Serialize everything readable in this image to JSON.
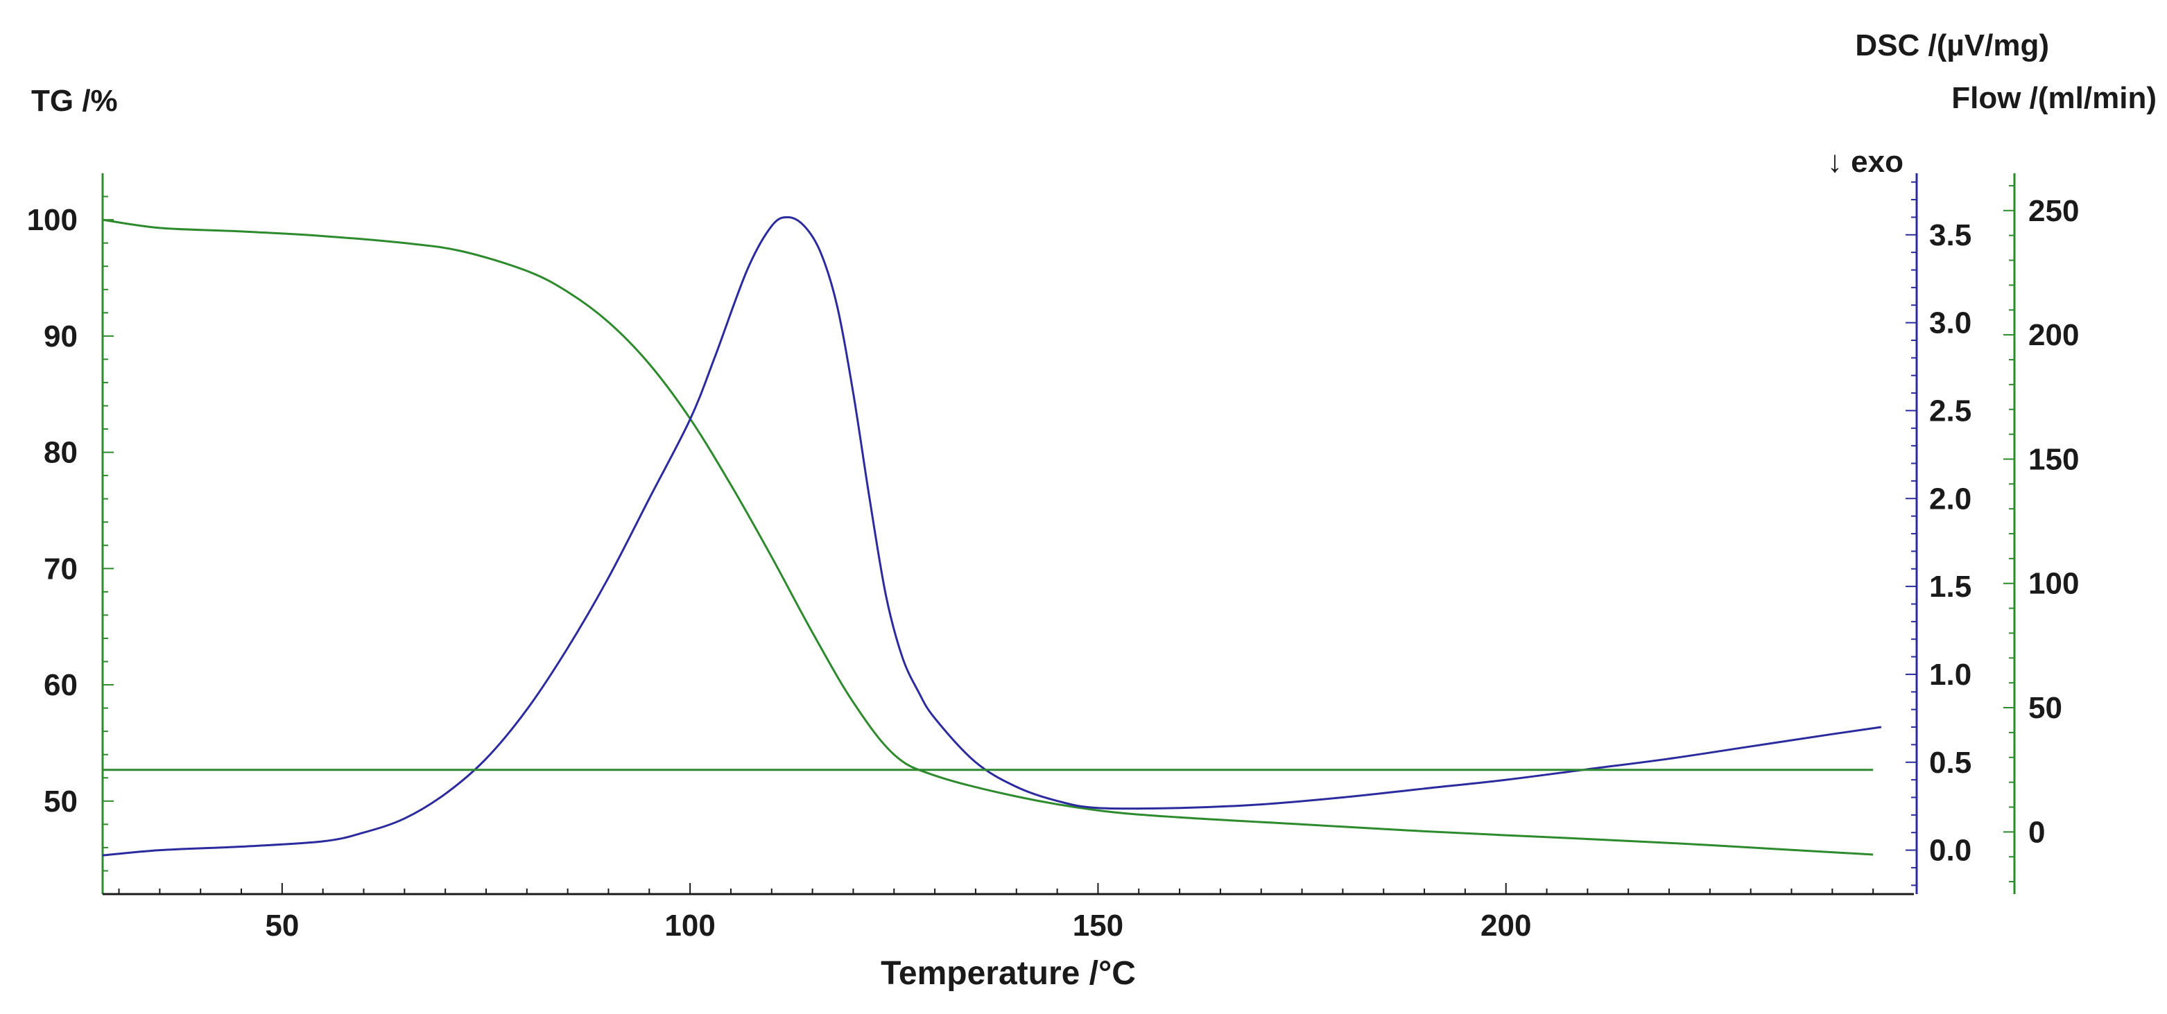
{
  "chart_data": {
    "type": "line",
    "title": "",
    "x_axis": {
      "label": "Temperature /°C",
      "range": [
        28,
        250
      ],
      "ticks": [
        50,
        100,
        150,
        200
      ]
    },
    "axes": {
      "tg": {
        "label": "TG /%",
        "range": [
          42,
          104
        ],
        "ticks": [
          100,
          90,
          80,
          70,
          60,
          50
        ],
        "color": "#2d8a2d"
      },
      "dsc": {
        "label": "DSC /(µV/mg)",
        "range": [
          -0.25,
          3.85
        ],
        "ticks": [
          "3.5",
          "3.0",
          "2.5",
          "2.0",
          "1.5",
          "1.0",
          "0.5",
          "0.0"
        ],
        "color": "#2b2b9e",
        "exo_marker": "↓ exo"
      },
      "flow": {
        "label": "Flow /(ml/min)",
        "range": [
          -25,
          265
        ],
        "ticks": [
          250,
          200,
          150,
          100,
          50,
          0
        ],
        "color": "#2d8a2d"
      }
    },
    "series": [
      {
        "name": "TG",
        "axis": "tg",
        "color": "#2d8a2d",
        "x": [
          28,
          35,
          45,
          55,
          65,
          72,
          80,
          85,
          90,
          95,
          100,
          105,
          110,
          115,
          120,
          125,
          130,
          140,
          150,
          160,
          175,
          190,
          205,
          220,
          235,
          245
        ],
        "y": [
          100,
          99.3,
          99,
          98.6,
          98,
          97.3,
          95.6,
          93.8,
          91.2,
          87.6,
          82.9,
          77.2,
          71,
          64.5,
          58.5,
          54,
          52.2,
          50.4,
          49.2,
          48.6,
          48,
          47.4,
          46.9,
          46.4,
          45.8,
          45.4
        ]
      },
      {
        "name": "DSC",
        "axis": "dsc",
        "color": "#2b2b9e",
        "x": [
          28,
          35,
          45,
          55,
          60,
          65,
          70,
          75,
          80,
          85,
          90,
          95,
          100,
          103,
          107,
          110,
          112,
          114,
          116,
          118,
          120,
          122,
          124,
          126,
          128,
          130,
          135,
          140,
          145,
          150,
          160,
          170,
          180,
          190,
          200,
          210,
          220,
          230,
          240,
          246
        ],
        "y": [
          -0.03,
          0,
          0.02,
          0.05,
          0.1,
          0.18,
          0.32,
          0.52,
          0.8,
          1.15,
          1.55,
          2.0,
          2.45,
          2.8,
          3.3,
          3.55,
          3.6,
          3.55,
          3.4,
          3.1,
          2.6,
          2.0,
          1.45,
          1.1,
          0.9,
          0.75,
          0.5,
          0.36,
          0.28,
          0.24,
          0.24,
          0.26,
          0.3,
          0.35,
          0.4,
          0.46,
          0.52,
          0.59,
          0.66,
          0.7
        ]
      },
      {
        "name": "Flow",
        "axis": "flow",
        "color": "#2d8a2d",
        "x": [
          28,
          245
        ],
        "y": [
          25,
          25
        ]
      }
    ]
  }
}
